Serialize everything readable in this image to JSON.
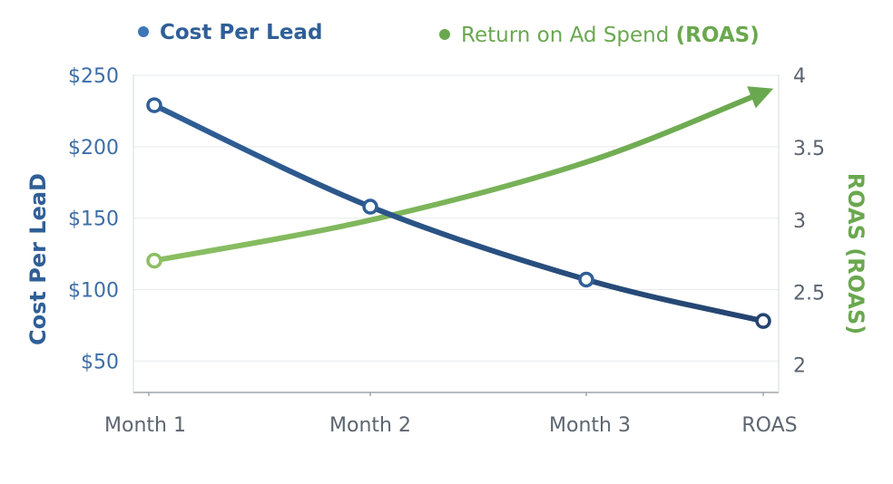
{
  "chart_data": {
    "type": "line",
    "categories": [
      "Month 1",
      "Month 2",
      "Month 3",
      "ROAS"
    ],
    "series": [
      {
        "name": "Cost Per Lead",
        "axis": "left",
        "values": [
          229,
          158,
          107,
          78
        ],
        "color": "#2f5f97",
        "color_end": "#24446f",
        "markers": true
      },
      {
        "name": "Return on Ad Spend (ROAS)",
        "name_prefix": "Return on Ad Spend ",
        "name_bold": "(ROAS)",
        "axis": "right",
        "values": [
          2.72,
          3.0,
          3.4,
          3.88
        ],
        "color": "#8bbf63",
        "color_end": "#6aa84f",
        "markers": "first",
        "arrow_end": true
      }
    ],
    "y_left": {
      "label": "Cost Per LeaD",
      "ticks": [
        "$250",
        "$200",
        "$150",
        "$100",
        "$50"
      ],
      "tick_values": [
        250,
        200,
        150,
        100,
        50
      ],
      "range": [
        28,
        250
      ],
      "color": "#2f5f97"
    },
    "y_right": {
      "label": "ROAS (ROAS)",
      "ticks": [
        "4",
        "3.5",
        "3",
        "2.5",
        "2"
      ],
      "tick_values": [
        4,
        3.5,
        3,
        2.5,
        2
      ],
      "range": [
        1.81,
        4
      ],
      "color": "#6aa84f"
    },
    "grid": true,
    "legend": "top"
  }
}
